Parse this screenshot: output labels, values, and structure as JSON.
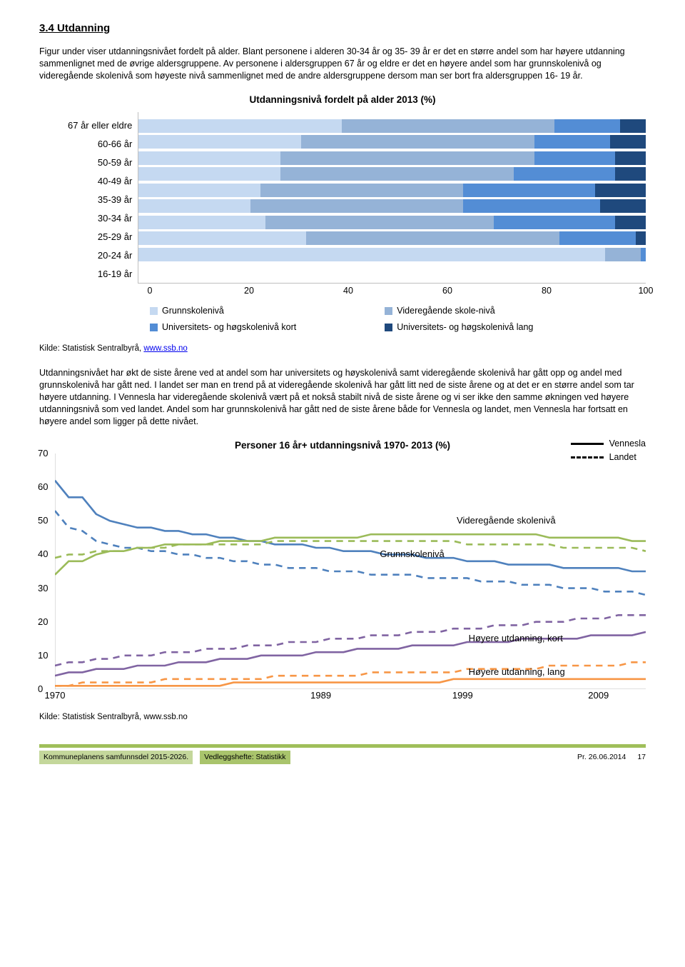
{
  "heading": "3.4   Utdanning",
  "intro": "Figur under viser utdanningsnivået fordelt på alder. Blant personene i alderen 30-34 år og 35- 39 år er det en større andel som har høyere utdanning sammenlignet med de øvrige aldersgruppene. Av personene i aldersgruppen 67 år og eldre er det en høyere andel som har grunnskolenivå og videregående skolenivå som høyeste nivå sammenlignet med de andre aldersgruppene dersom man ser bort fra aldersgruppen 16- 19 år.",
  "bar_chart": {
    "title": "Utdanningsnivå fordelt på alder 2013 (%)",
    "colors": {
      "grunnskole": "#c5d9f1",
      "videregaende": "#95b3d7",
      "uni_kort": "#538dd5",
      "uni_lang": "#1f497d"
    },
    "categories": [
      {
        "label": "67 år eller eldre",
        "values": [
          40,
          42,
          13,
          5
        ]
      },
      {
        "label": "60-66 år",
        "values": [
          32,
          46,
          15,
          7
        ]
      },
      {
        "label": "50-59 år",
        "values": [
          28,
          50,
          16,
          6
        ]
      },
      {
        "label": "40-49 år",
        "values": [
          28,
          46,
          20,
          6
        ]
      },
      {
        "label": "35-39 år",
        "values": [
          24,
          40,
          26,
          10
        ]
      },
      {
        "label": "30-34 år",
        "values": [
          22,
          42,
          27,
          9
        ]
      },
      {
        "label": "25-29 år",
        "values": [
          25,
          45,
          24,
          6
        ]
      },
      {
        "label": "20-24 år",
        "values": [
          33,
          50,
          15,
          2
        ]
      },
      {
        "label": "16-19 år",
        "values": [
          92,
          7,
          1,
          0
        ]
      }
    ],
    "xticks": [
      "0",
      "20",
      "40",
      "60",
      "80",
      "100"
    ],
    "legend": {
      "grunnskole": "Grunnskolenivå",
      "videregaende": "Videregående skole-nivå",
      "uni_kort": "Universitets- og høgskolenivå kort",
      "uni_lang": "Universitets- og høgskolenivå lang"
    }
  },
  "source_label": "Kilde: Statistisk Sentralbyrå, ",
  "source_link": "www.ssb.no",
  "mid_para": "Utdanningsnivået har økt de siste årene ved at andel som har universitets og høyskolenivå samt videregående skolenivå har gått opp og andel med grunnskolenivå har gått ned. I landet ser man en trend på at videregående skolenivå har gått litt ned de siste årene og at det er en større andel som tar høyere utdanning. I Vennesla har videregående skolenivå vært på et nokså stabilt nivå de siste årene og vi ser ikke den samme økningen ved høyere utdanningsnivå som ved landet. Andel som har grunnskolenivå har gått ned de siste årene både for Vennesla og landet, men Vennesla har fortsatt en høyere andel som ligger på dette nivået.",
  "line_chart": {
    "title": "Personer 16 år+ utdanningsnivå 1970- 2013 (%)",
    "legend_right": {
      "solid": "Vennesla",
      "dashed": "Landet"
    },
    "yticks": [
      0,
      10,
      20,
      30,
      40,
      50,
      60,
      70
    ],
    "ymax": 70,
    "xticks": [
      "1970",
      "1989",
      "1999",
      "2009"
    ],
    "colors": {
      "blue": "#4f81bd",
      "green": "#9bbb59",
      "purple": "#8064a2",
      "orange": "#f79646"
    },
    "annotations": {
      "videre": "Videregående skolenivå",
      "grunn": "Grunnskolenivå",
      "hkort": "Høyere utdanning, kort",
      "hlang": "Høyere utdanning, lang"
    },
    "series": {
      "venn_grunn": [
        62,
        57,
        57,
        52,
        50,
        49,
        48,
        48,
        47,
        47,
        46,
        46,
        45,
        45,
        44,
        44,
        43,
        43,
        43,
        42,
        42,
        41,
        41,
        41,
        40,
        40,
        40,
        39,
        39,
        39,
        38,
        38,
        38,
        37,
        37,
        37,
        37,
        36,
        36,
        36,
        36,
        36,
        35,
        35
      ],
      "land_grunn": [
        53,
        48,
        47,
        44,
        43,
        42,
        42,
        41,
        41,
        40,
        40,
        39,
        39,
        38,
        38,
        37,
        37,
        36,
        36,
        36,
        35,
        35,
        35,
        34,
        34,
        34,
        34,
        33,
        33,
        33,
        33,
        32,
        32,
        32,
        31,
        31,
        31,
        30,
        30,
        30,
        29,
        29,
        29,
        28
      ],
      "venn_videre": [
        34,
        38,
        38,
        40,
        41,
        41,
        42,
        42,
        43,
        43,
        43,
        43,
        44,
        44,
        44,
        44,
        45,
        45,
        45,
        45,
        45,
        45,
        45,
        46,
        46,
        46,
        46,
        46,
        46,
        46,
        46,
        46,
        46,
        46,
        46,
        46,
        45,
        45,
        45,
        45,
        45,
        45,
        44,
        44
      ],
      "land_videre": [
        39,
        40,
        40,
        41,
        41,
        41,
        42,
        42,
        42,
        43,
        43,
        43,
        43,
        43,
        43,
        43,
        44,
        44,
        44,
        44,
        44,
        44,
        44,
        44,
        44,
        44,
        44,
        44,
        44,
        44,
        43,
        43,
        43,
        43,
        43,
        43,
        43,
        42,
        42,
        42,
        42,
        42,
        42,
        41
      ],
      "venn_hkort": [
        4,
        5,
        5,
        6,
        6,
        6,
        7,
        7,
        7,
        8,
        8,
        8,
        9,
        9,
        9,
        10,
        10,
        10,
        10,
        11,
        11,
        11,
        12,
        12,
        12,
        12,
        13,
        13,
        13,
        13,
        14,
        14,
        14,
        14,
        15,
        15,
        15,
        15,
        15,
        16,
        16,
        16,
        16,
        17
      ],
      "land_hkort": [
        7,
        8,
        8,
        9,
        9,
        10,
        10,
        10,
        11,
        11,
        11,
        12,
        12,
        12,
        13,
        13,
        13,
        14,
        14,
        14,
        15,
        15,
        15,
        16,
        16,
        16,
        17,
        17,
        17,
        18,
        18,
        18,
        19,
        19,
        19,
        20,
        20,
        20,
        21,
        21,
        21,
        22,
        22,
        22
      ],
      "venn_hlang": [
        1,
        1,
        1,
        1,
        1,
        1,
        1,
        1,
        1,
        1,
        1,
        1,
        1,
        2,
        2,
        2,
        2,
        2,
        2,
        2,
        2,
        2,
        2,
        2,
        2,
        2,
        2,
        2,
        2,
        3,
        3,
        3,
        3,
        3,
        3,
        3,
        3,
        3,
        3,
        3,
        3,
        3,
        3,
        3
      ],
      "land_hlang": [
        1,
        1,
        2,
        2,
        2,
        2,
        2,
        2,
        3,
        3,
        3,
        3,
        3,
        3,
        3,
        3,
        4,
        4,
        4,
        4,
        4,
        4,
        4,
        5,
        5,
        5,
        5,
        5,
        5,
        5,
        6,
        6,
        6,
        6,
        6,
        6,
        7,
        7,
        7,
        7,
        7,
        7,
        8,
        8
      ]
    }
  },
  "footer": {
    "left1": "Kommuneplanens samfunnsdel 2015-2026.",
    "left2": "Vedleggshefte: Statistikk",
    "right": "Pr. 26.06.2014",
    "page": "17"
  }
}
